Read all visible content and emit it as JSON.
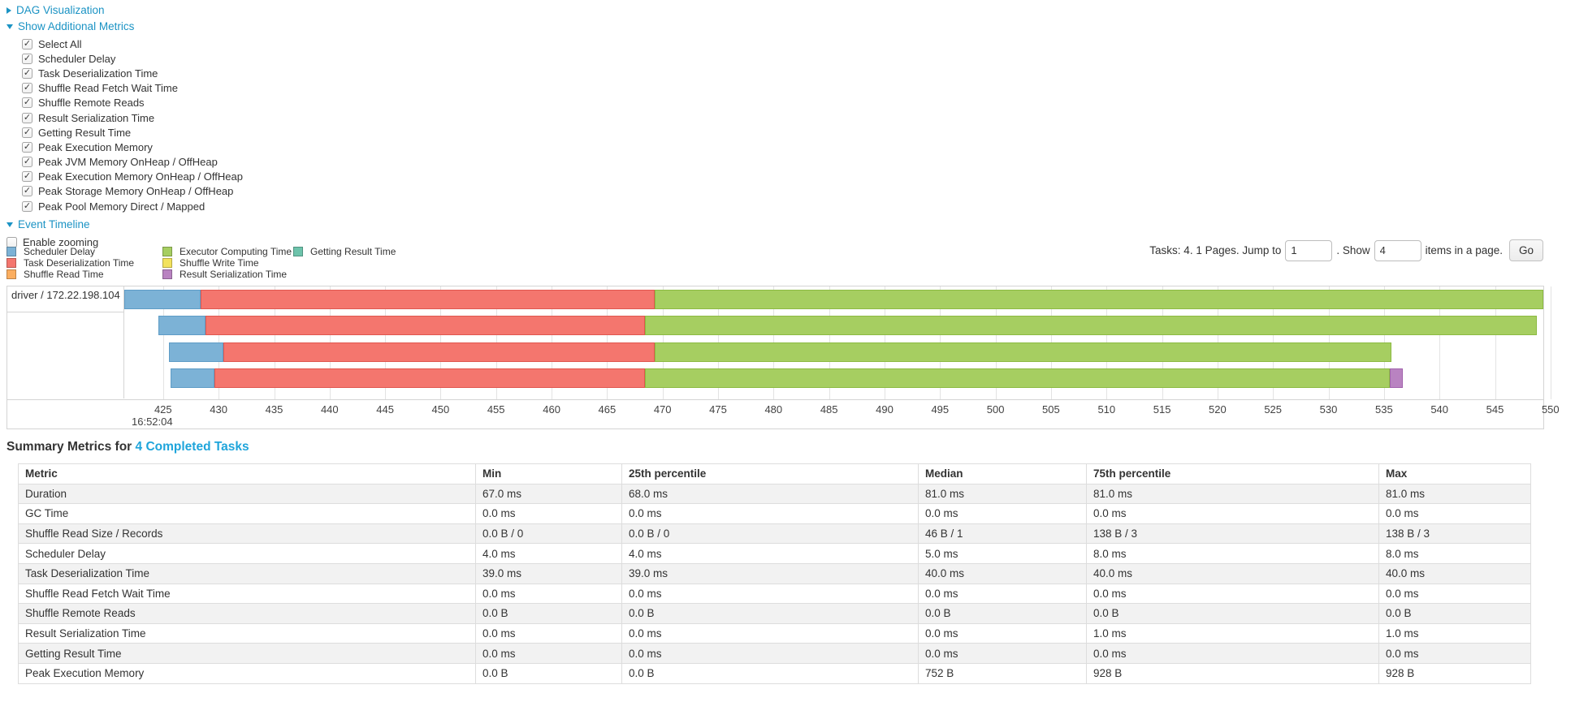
{
  "sections": {
    "dag": {
      "label": "DAG Visualization",
      "state": "collapsed"
    },
    "metrics": {
      "label": "Show Additional Metrics",
      "state": "expanded"
    },
    "event_timeline": {
      "label": "Event Timeline",
      "state": "expanded"
    },
    "enable_zooming": {
      "label": "Enable zooming",
      "checked": false
    }
  },
  "metric_checkboxes": [
    {
      "label": "Select All",
      "checked": true
    },
    {
      "label": "Scheduler Delay",
      "checked": true
    },
    {
      "label": "Task Deserialization Time",
      "checked": true
    },
    {
      "label": "Shuffle Read Fetch Wait Time",
      "checked": true
    },
    {
      "label": "Shuffle Remote Reads",
      "checked": true
    },
    {
      "label": "Result Serialization Time",
      "checked": true
    },
    {
      "label": "Getting Result Time",
      "checked": true
    },
    {
      "label": "Peak Execution Memory",
      "checked": true
    },
    {
      "label": "Peak JVM Memory OnHeap / OffHeap",
      "checked": true
    },
    {
      "label": "Peak Execution Memory OnHeap / OffHeap",
      "checked": true
    },
    {
      "label": "Peak Storage Memory OnHeap / OffHeap",
      "checked": true
    },
    {
      "label": "Peak Pool Memory Direct / Mapped",
      "checked": true
    }
  ],
  "palette": {
    "scheduler_delay": {
      "label": "Scheduler Delay",
      "fill": "#7CB2D6",
      "border": "#5E9CC6"
    },
    "task_deserialization": {
      "label": "Task Deserialization Time",
      "fill": "#F4766E",
      "border": "#E0574F"
    },
    "shuffle_read": {
      "label": "Shuffle Read Time",
      "fill": "#FBAE60",
      "border": "#EE9432"
    },
    "executor_computing": {
      "label": "Executor Computing Time",
      "fill": "#A6CE61",
      "border": "#8CBA42"
    },
    "shuffle_write": {
      "label": "Shuffle Write Time",
      "fill": "#F2E25D",
      "border": "#DCC93C"
    },
    "result_serialization": {
      "label": "Result Serialization Time",
      "fill": "#B983C1",
      "border": "#A163AC"
    },
    "getting_result": {
      "label": "Getting Result Time",
      "fill": "#6DC3AB",
      "border": "#4FAD92"
    }
  },
  "legend_columns": [
    [
      "scheduler_delay",
      "task_deserialization",
      "shuffle_read"
    ],
    [
      "executor_computing",
      "shuffle_write",
      "result_serialization"
    ],
    [
      "getting_result"
    ]
  ],
  "pagination": {
    "prefix": "Tasks: 4. 1 Pages. Jump to",
    "jump_value": "1",
    "mid": ". Show",
    "show_value": "4",
    "suffix": "items in a page.",
    "go_label": "Go"
  },
  "timeline": {
    "type": "gantt-timeline",
    "group_label": "driver / 172.22.198.104",
    "axis": {
      "min": 421.5,
      "max": 549.6,
      "tick_start": 425,
      "tick_end": 550,
      "tick_step": 5,
      "time_label": "16:52:04"
    },
    "rows": [
      {
        "start": 421.5,
        "segments": [
          {
            "metric": "scheduler_delay",
            "end": 428.4
          },
          {
            "metric": "task_deserialization",
            "end": 469.3
          },
          {
            "metric": "executor_computing",
            "end": 549.6
          }
        ]
      },
      {
        "start": 424.6,
        "segments": [
          {
            "metric": "scheduler_delay",
            "end": 428.8
          },
          {
            "metric": "task_deserialization",
            "end": 468.4
          },
          {
            "metric": "executor_computing",
            "end": 548.8
          }
        ]
      },
      {
        "start": 425.5,
        "segments": [
          {
            "metric": "scheduler_delay",
            "end": 430.4
          },
          {
            "metric": "task_deserialization",
            "end": 469.3
          },
          {
            "metric": "executor_computing",
            "end": 535.7
          }
        ]
      },
      {
        "start": 425.7,
        "segments": [
          {
            "metric": "scheduler_delay",
            "end": 429.6
          },
          {
            "metric": "task_deserialization",
            "end": 468.4
          },
          {
            "metric": "executor_computing",
            "end": 535.5
          },
          {
            "metric": "result_serialization",
            "end": 536.7
          }
        ]
      }
    ]
  },
  "summary": {
    "title_prefix": "Summary Metrics for",
    "title_link": "4 Completed Tasks",
    "headers": [
      "Metric",
      "Min",
      "25th percentile",
      "Median",
      "75th percentile",
      "Max"
    ],
    "rows": [
      [
        "Duration",
        "67.0 ms",
        "68.0 ms",
        "81.0 ms",
        "81.0 ms",
        "81.0 ms"
      ],
      [
        "GC Time",
        "0.0 ms",
        "0.0 ms",
        "0.0 ms",
        "0.0 ms",
        "0.0 ms"
      ],
      [
        "Shuffle Read Size / Records",
        "0.0 B / 0",
        "0.0 B / 0",
        "46 B / 1",
        "138 B / 3",
        "138 B / 3"
      ],
      [
        "Scheduler Delay",
        "4.0 ms",
        "4.0 ms",
        "5.0 ms",
        "8.0 ms",
        "8.0 ms"
      ],
      [
        "Task Deserialization Time",
        "39.0 ms",
        "39.0 ms",
        "40.0 ms",
        "40.0 ms",
        "40.0 ms"
      ],
      [
        "Shuffle Read Fetch Wait Time",
        "0.0 ms",
        "0.0 ms",
        "0.0 ms",
        "0.0 ms",
        "0.0 ms"
      ],
      [
        "Shuffle Remote Reads",
        "0.0 B",
        "0.0 B",
        "0.0 B",
        "0.0 B",
        "0.0 B"
      ],
      [
        "Result Serialization Time",
        "0.0 ms",
        "0.0 ms",
        "0.0 ms",
        "1.0 ms",
        "1.0 ms"
      ],
      [
        "Getting Result Time",
        "0.0 ms",
        "0.0 ms",
        "0.0 ms",
        "0.0 ms",
        "0.0 ms"
      ],
      [
        "Peak Execution Memory",
        "0.0 B",
        "0.0 B",
        "752 B",
        "928 B",
        "928 B"
      ]
    ]
  }
}
